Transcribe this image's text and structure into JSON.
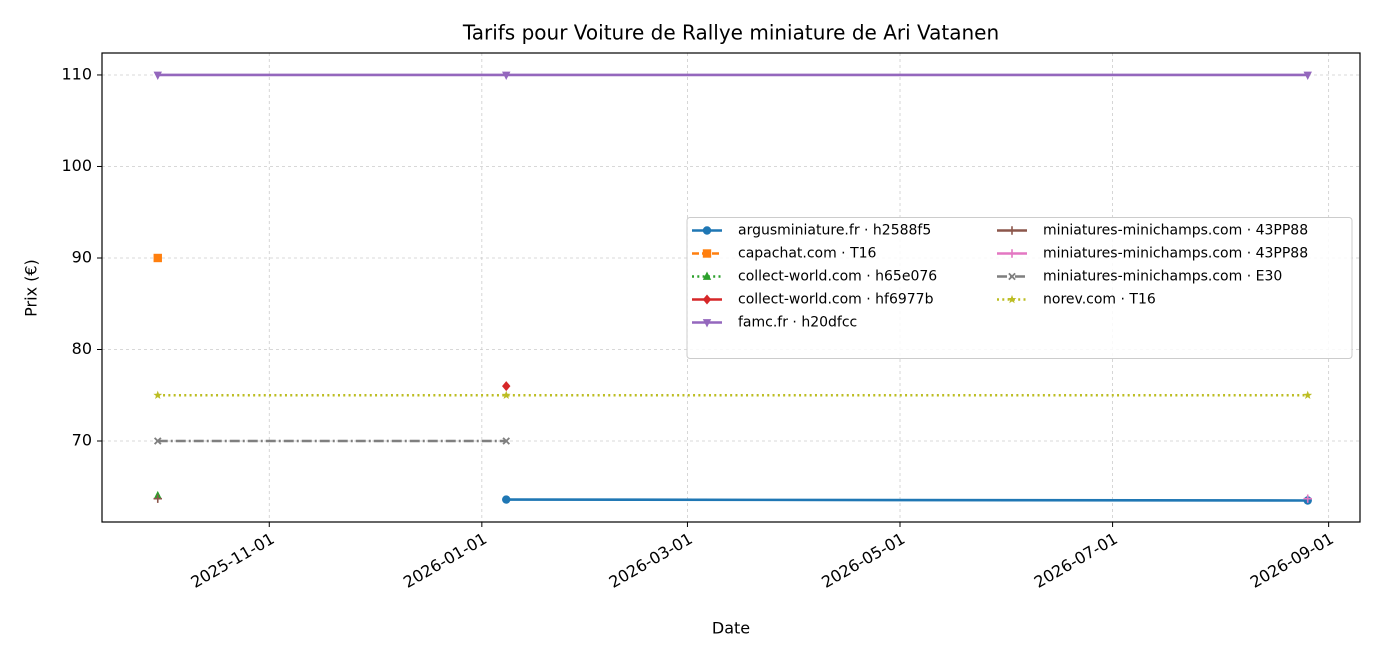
{
  "chart_data": {
    "type": "line",
    "title": "Tarifs pour Voiture de Rallye miniature de Ari Vatanen",
    "x_label": "Date",
    "y_label": "Prix (€)",
    "x": [
      "2025-09-30",
      "2026-01-08",
      "2026-08-26"
    ],
    "xlim": [
      "2025-09-14",
      "2026-09-10"
    ],
    "xticks": [
      "2025-11-01",
      "2026-01-01",
      "2026-03-01",
      "2026-05-01",
      "2026-07-01",
      "2026-09-01"
    ],
    "ylim": [
      61.15,
      112.4
    ],
    "yticks": [
      70,
      80,
      90,
      100,
      110
    ],
    "grid": true,
    "legend": "center right",
    "series": [
      {
        "name": "argusminiature.fr · h2588f5",
        "color": "#1f77b4",
        "marker": "circle",
        "linestyle": "solid",
        "values": [
          null,
          63.6,
          63.5
        ]
      },
      {
        "name": "capachat.com · T16",
        "color": "#ff7f0e",
        "marker": "square",
        "linestyle": "dashed",
        "values": [
          90,
          null,
          null
        ]
      },
      {
        "name": "collect-world.com · h65e076",
        "color": "#2ca02c",
        "marker": "triangle-up",
        "linestyle": "dotted",
        "values": [
          64,
          null,
          null
        ]
      },
      {
        "name": "collect-world.com · hf6977b",
        "color": "#d62728",
        "marker": "diamond",
        "linestyle": "solid",
        "values": [
          null,
          76,
          null
        ]
      },
      {
        "name": "famc.fr · h20dfcc",
        "color": "#9467bd",
        "marker": "triangle-down",
        "linestyle": "solid",
        "values": [
          110,
          110,
          110
        ]
      },
      {
        "name": "miniatures-minichamps.com · 43PP88",
        "color": "#8c564b",
        "marker": "plus",
        "linestyle": "solid",
        "values": [
          63.7,
          null,
          null
        ]
      },
      {
        "name": "miniatures-minichamps.com · 43PP88",
        "color": "#e377c2",
        "marker": "plus",
        "linestyle": "solid",
        "values": [
          null,
          null,
          63.7
        ]
      },
      {
        "name": "miniatures-minichamps.com · E30",
        "color": "#7f7f7f",
        "marker": "x",
        "linestyle": "dashdot",
        "values": [
          70,
          70,
          null
        ]
      },
      {
        "name": "norev.com · T16",
        "color": "#bcbd22",
        "marker": "star",
        "linestyle": "dotted",
        "values": [
          75,
          75,
          75
        ]
      }
    ]
  }
}
